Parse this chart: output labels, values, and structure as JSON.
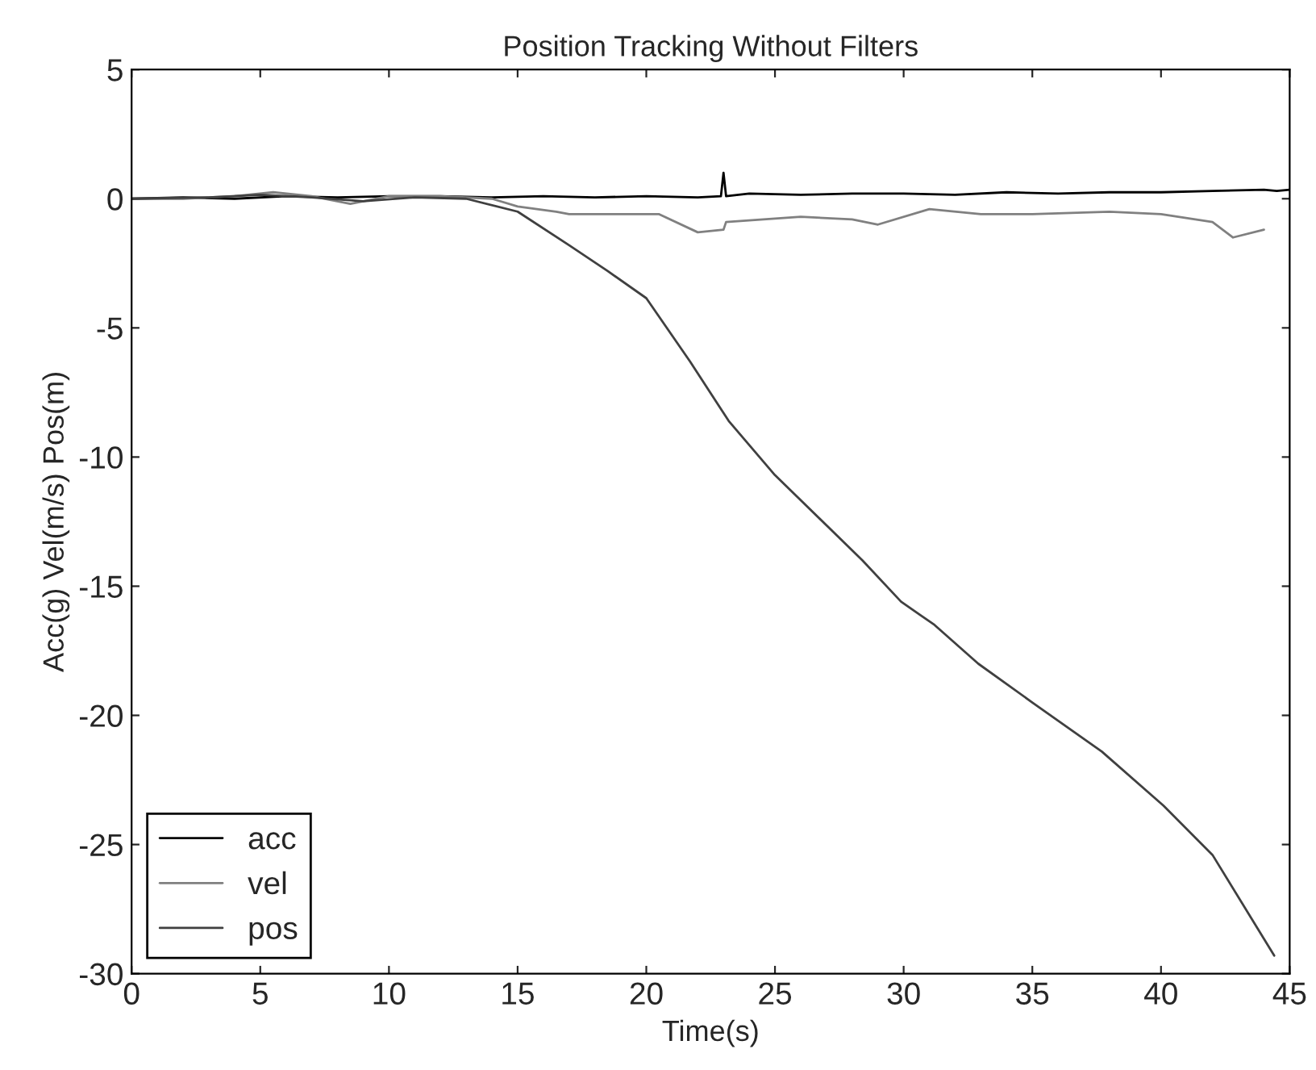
{
  "chart_data": {
    "type": "line",
    "title": "Position Tracking Without Filters",
    "xlabel": "Time(s)",
    "ylabel": "Acc(g) Vel(m/s) Pos(m)",
    "xlim": [
      0,
      45
    ],
    "ylim": [
      -30,
      5
    ],
    "xticks": [
      0,
      5,
      10,
      15,
      20,
      25,
      30,
      35,
      40,
      45
    ],
    "yticks": [
      -30,
      -25,
      -20,
      -15,
      -10,
      -5,
      0,
      5
    ],
    "grid": false,
    "legend": "bottom left",
    "marker": "none",
    "line_style": "solid",
    "series": [
      {
        "name": "acc",
        "color": "#000000",
        "x": [
          0,
          2,
          4,
          6,
          8,
          10,
          12,
          14,
          16,
          18,
          20,
          22,
          22.9,
          23.0,
          23.1,
          24,
          26,
          28,
          30,
          32,
          34,
          36,
          38,
          40,
          42,
          44,
          44.5,
          45
        ],
        "values": [
          0,
          0.05,
          0,
          0.1,
          0.05,
          0.1,
          0.1,
          0.05,
          0.1,
          0.05,
          0.1,
          0.05,
          0.1,
          1.0,
          0.1,
          0.2,
          0.15,
          0.2,
          0.2,
          0.15,
          0.25,
          0.2,
          0.25,
          0.25,
          0.3,
          0.35,
          0.3,
          0.35
        ]
      },
      {
        "name": "vel",
        "color": "#808080",
        "x": [
          0,
          2,
          4,
          5.5,
          7,
          8.5,
          10,
          12,
          14,
          15,
          16.5,
          17,
          20.5,
          22,
          23,
          23.1,
          26,
          28,
          29,
          31,
          33,
          35,
          38,
          40,
          42,
          42.8,
          44
        ],
        "values": [
          0,
          0,
          0.1,
          0.25,
          0.1,
          -0.2,
          0.1,
          0.1,
          0,
          -0.3,
          -0.5,
          -0.6,
          -0.6,
          -1.3,
          -1.2,
          -0.9,
          -0.7,
          -0.8,
          -1.0,
          -0.4,
          -0.6,
          -0.6,
          -0.5,
          -0.6,
          -0.9,
          -1.5,
          -1.2
        ]
      },
      {
        "name": "pos",
        "color": "#404040",
        "x": [
          0,
          3,
          5,
          7,
          9,
          11,
          13,
          15,
          17,
          18.5,
          20,
          21.7,
          23.2,
          25,
          28.4,
          29.9,
          31.2,
          32.9,
          35,
          37.7,
          40.1,
          42,
          44.4
        ],
        "values": [
          0,
          0.05,
          0.15,
          0.05,
          -0.1,
          0.05,
          0,
          -0.5,
          -1.8,
          -2.8,
          -3.85,
          -6.3,
          -8.6,
          -10.7,
          -14.0,
          -15.6,
          -16.5,
          -18.0,
          -19.5,
          -21.4,
          -23.5,
          -25.4,
          -29.3
        ]
      }
    ]
  }
}
